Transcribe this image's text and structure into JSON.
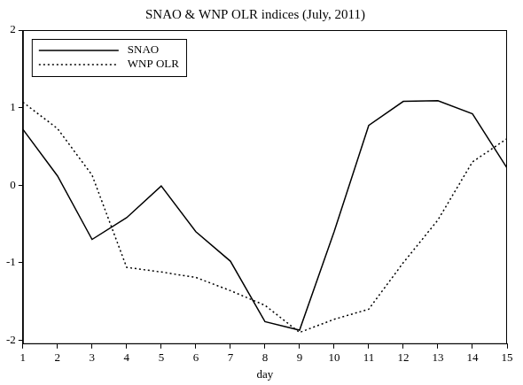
{
  "chart_data": {
    "type": "line",
    "title": "SNAO & WNP OLR indices (July, 2011)",
    "x_label": "day",
    "x": [
      1,
      2,
      3,
      4,
      5,
      6,
      7,
      8,
      9,
      10,
      11,
      12,
      13,
      14,
      15
    ],
    "series": [
      {
        "name": "SNAO",
        "color": "#000000",
        "line_style": "solid",
        "values": [
          0.72,
          0.12,
          -0.7,
          -0.42,
          -0.01,
          -0.6,
          -0.98,
          -1.76,
          -1.87,
          -0.6,
          0.77,
          1.08,
          1.09,
          0.92,
          0.22
        ]
      },
      {
        "name": "WNP OLR",
        "color": "#000000",
        "line_style": "dotted",
        "values": [
          1.07,
          0.73,
          0.13,
          -1.06,
          -1.12,
          -1.19,
          -1.36,
          -1.55,
          -1.9,
          -1.73,
          -1.6,
          -1.0,
          -0.45,
          0.3,
          0.6
        ]
      }
    ],
    "xlim": [
      1,
      15
    ],
    "xticks": [
      1,
      2,
      3,
      4,
      5,
      6,
      7,
      8,
      9,
      10,
      11,
      12,
      13,
      14,
      15
    ],
    "ylim": [
      -2.05,
      2
    ],
    "yticks": [
      -2,
      -1,
      0,
      1,
      2
    ],
    "grid": false,
    "legend": "top-left"
  }
}
